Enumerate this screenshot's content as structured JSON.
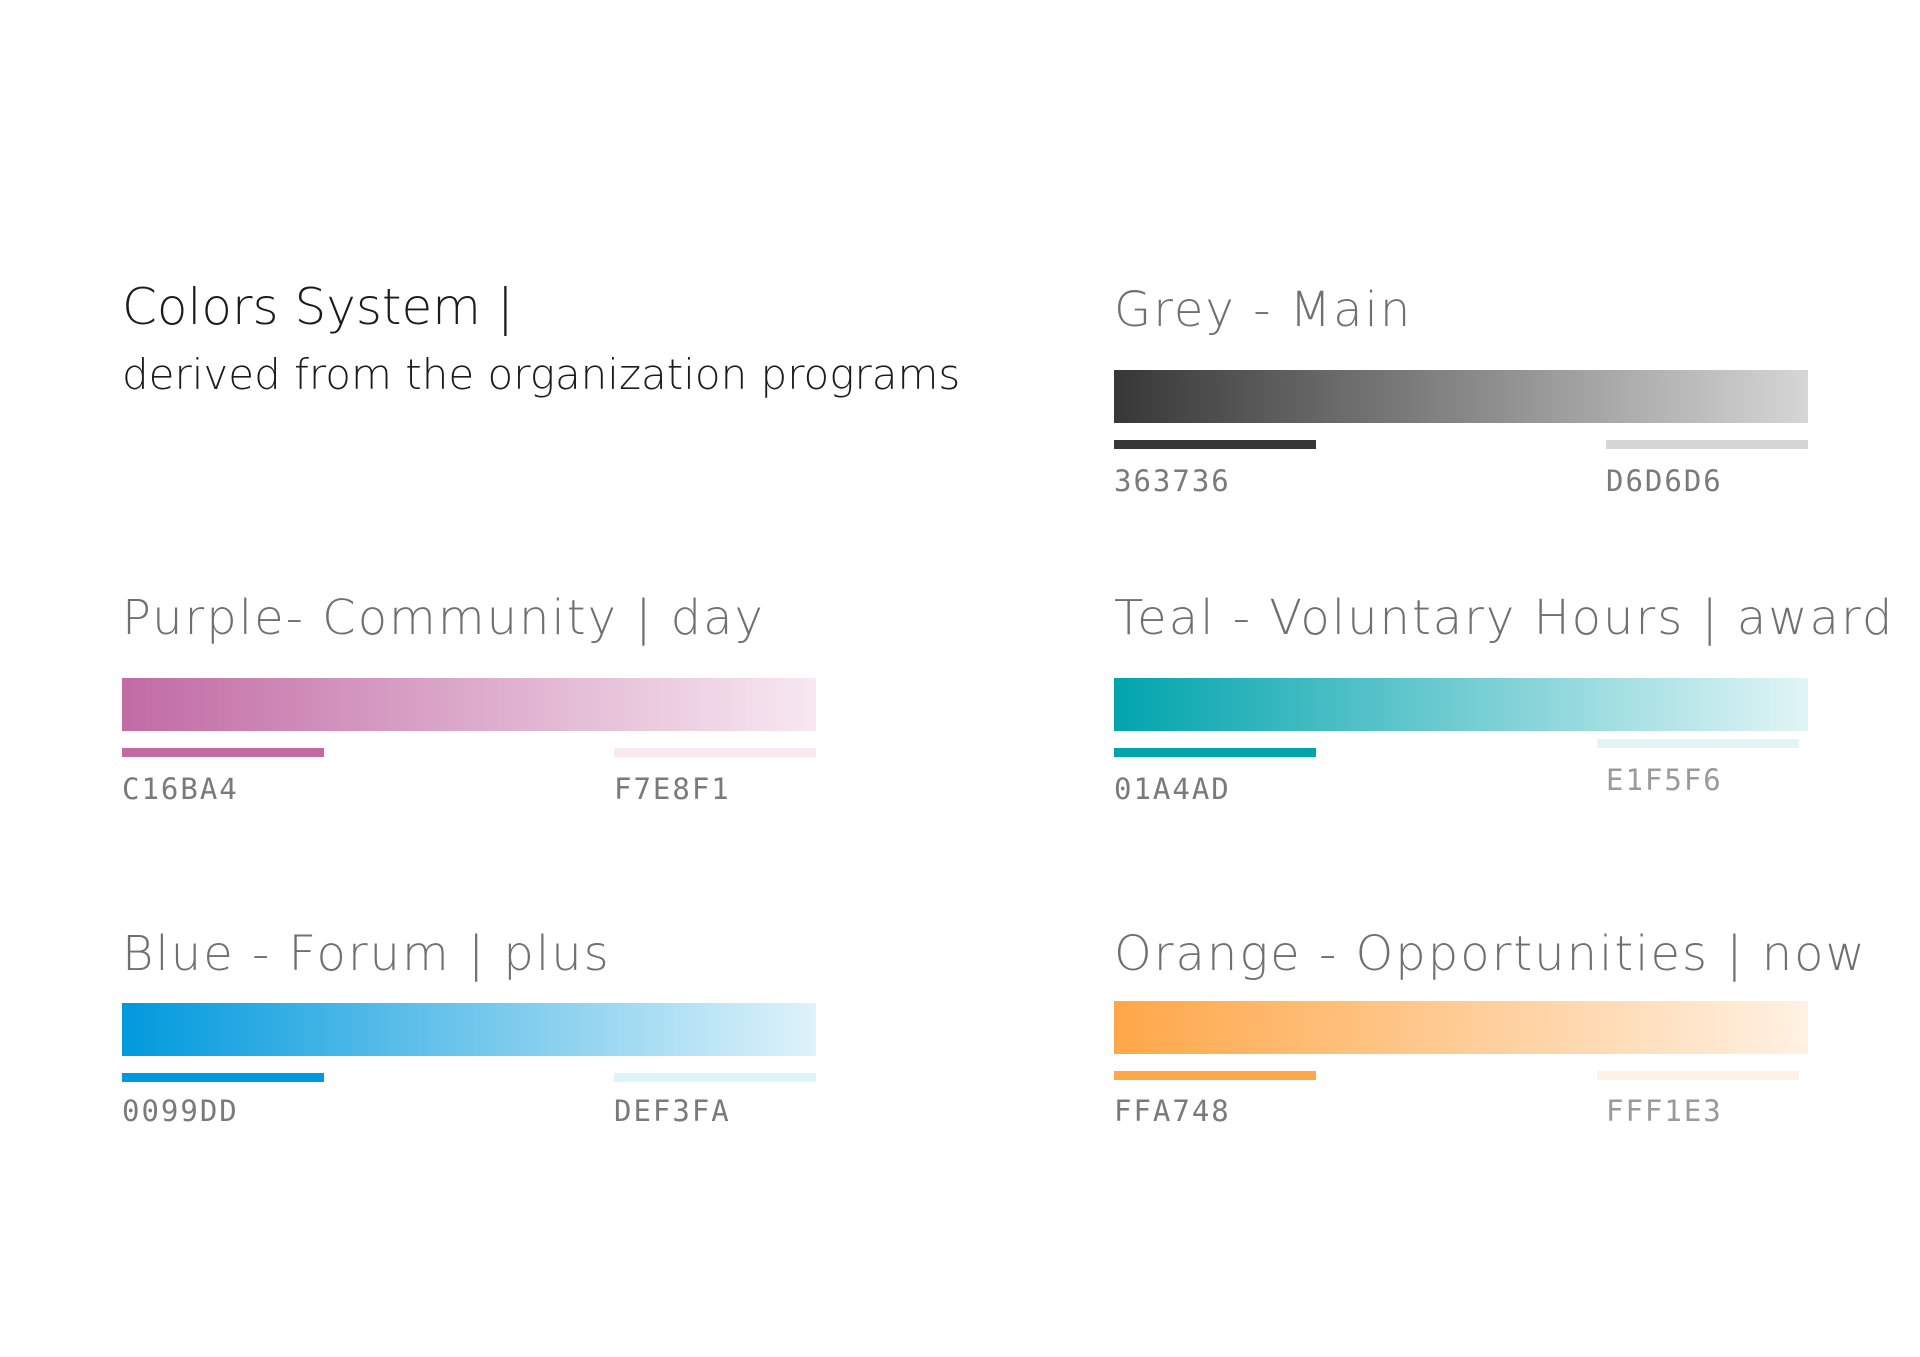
{
  "intro": {
    "title": "Colors System |",
    "subtitle": "derived from the organization programs"
  },
  "palettes": [
    {
      "id": "grey",
      "title": "Grey - Main",
      "start_hex": "363736",
      "end_hex": "D6D6D6",
      "start_color": "#363736",
      "end_color": "#D6D6D6"
    },
    {
      "id": "purple",
      "title": "Purple- Community | day",
      "start_hex": "C16BA4",
      "end_hex": "F7E8F1",
      "start_color": "#C16BA4",
      "end_color": "#F7E8F1"
    },
    {
      "id": "teal",
      "title": "Teal - Voluntary Hours | award",
      "start_hex": "01A4AD",
      "end_hex": "E1F5F6",
      "start_color": "#01A4AD",
      "end_color": "#E1F5F6"
    },
    {
      "id": "blue",
      "title": "Blue - Forum | plus",
      "start_hex": "0099DD",
      "end_hex": "DEF3FA",
      "start_color": "#0099DD",
      "end_color": "#DEF3FA"
    },
    {
      "id": "orange",
      "title": "Orange - Opportunities | now",
      "start_hex": "FFA748",
      "end_hex": "FFF1E3",
      "start_color": "#FFA748",
      "end_color": "#FFF1E3"
    }
  ]
}
